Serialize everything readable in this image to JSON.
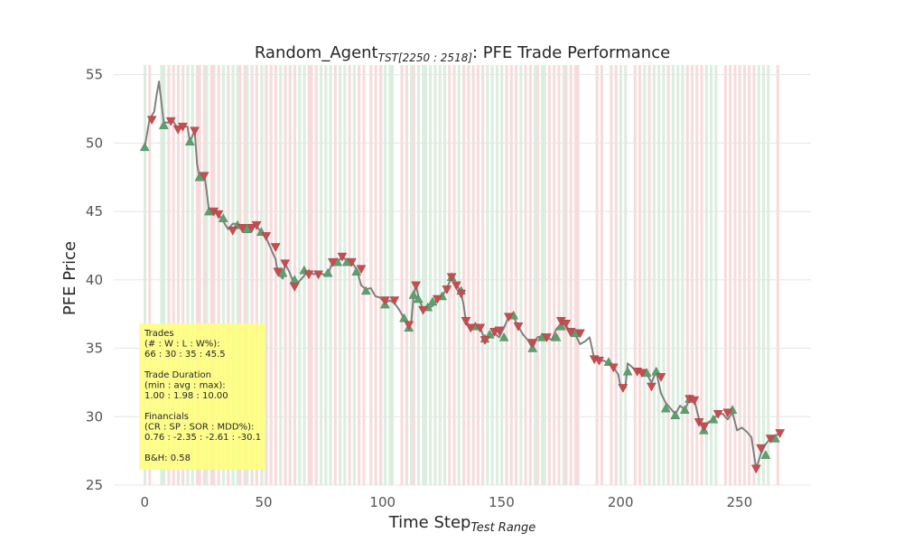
{
  "chart_data": {
    "type": "line",
    "title_main": "Random_Agent",
    "title_sub": "TST[2250 : 2518]",
    "title_rest": ": PFE Trade Performance",
    "xlabel_main": "Time Step",
    "xlabel_sub": "Test Range",
    "ylabel": "PFE Price",
    "xlim": [
      -13,
      280
    ],
    "ylim": [
      25,
      55.7
    ],
    "xticks": [
      0,
      50,
      100,
      150,
      200,
      250
    ],
    "yticks": [
      25,
      30,
      35,
      40,
      45,
      50,
      55
    ],
    "grid": true,
    "colors": {
      "line": "#808080",
      "buy": "#5f9e6e",
      "sell": "#c44e52",
      "win_band": "#d6ebd9",
      "loss_band": "#f6d6d6",
      "stats_box": "#fefe80",
      "grid": "#e5e5e5"
    },
    "price_points": [
      [
        0,
        49.7
      ],
      [
        2,
        51.7
      ],
      [
        4,
        52.3
      ],
      [
        5,
        53.5
      ],
      [
        6,
        54.5
      ],
      [
        7,
        53
      ],
      [
        8,
        51.5
      ],
      [
        10,
        51.5
      ],
      [
        12,
        51.6
      ],
      [
        14,
        51.0
      ],
      [
        16,
        51.2
      ],
      [
        18,
        51.2
      ],
      [
        19,
        50.1
      ],
      [
        21,
        50.9
      ],
      [
        22,
        48.5
      ],
      [
        23,
        47.5
      ],
      [
        25,
        47.8
      ],
      [
        26,
        46.5
      ],
      [
        27,
        45.1
      ],
      [
        29,
        45.1
      ],
      [
        31,
        44.8
      ],
      [
        33,
        44.3
      ],
      [
        35,
        43.7
      ],
      [
        37,
        44.1
      ],
      [
        39,
        44.1
      ],
      [
        41,
        43.8
      ],
      [
        43,
        43.7
      ],
      [
        45,
        43.9
      ],
      [
        47,
        44.0
      ],
      [
        49,
        43.4
      ],
      [
        51,
        43.1
      ],
      [
        53,
        42.3
      ],
      [
        55,
        41.5
      ],
      [
        56,
        40.5
      ],
      [
        58,
        40.1
      ],
      [
        59,
        41.2
      ],
      [
        61,
        40.5
      ],
      [
        63,
        39.6
      ],
      [
        65,
        39.9
      ],
      [
        67,
        40.3
      ],
      [
        69,
        40.7
      ],
      [
        71,
        40.4
      ],
      [
        73,
        40.5
      ],
      [
        75,
        40.4
      ],
      [
        77,
        40.4
      ],
      [
        79,
        41.3
      ],
      [
        81,
        41.3
      ],
      [
        83,
        41.7
      ],
      [
        85,
        41.4
      ],
      [
        87,
        41.3
      ],
      [
        89,
        40.8
      ],
      [
        91,
        39.6
      ],
      [
        93,
        39.3
      ],
      [
        95,
        39.4
      ],
      [
        97,
        38.8
      ],
      [
        99,
        38.7
      ],
      [
        101,
        38.3
      ],
      [
        103,
        38.5
      ],
      [
        105,
        38.3
      ],
      [
        107,
        37.8
      ],
      [
        109,
        37.2
      ],
      [
        111,
        36.7
      ],
      [
        112,
        36.9
      ],
      [
        113,
        38.8
      ],
      [
        114,
        39.6
      ],
      [
        115,
        38.8
      ],
      [
        117,
        37.8
      ],
      [
        119,
        37.9
      ],
      [
        121,
        38.1
      ],
      [
        123,
        38.6
      ],
      [
        125,
        38.8
      ],
      [
        127,
        39.4
      ],
      [
        129,
        40.2
      ],
      [
        131,
        39.7
      ],
      [
        133,
        39.0
      ],
      [
        134,
        38.2
      ],
      [
        135,
        37.0
      ],
      [
        137,
        36.5
      ],
      [
        139,
        36.6
      ],
      [
        141,
        36.5
      ],
      [
        143,
        35.6
      ],
      [
        145,
        35.8
      ],
      [
        147,
        36.1
      ],
      [
        149,
        35.8
      ],
      [
        151,
        36.5
      ],
      [
        153,
        37.3
      ],
      [
        155,
        37.3
      ],
      [
        157,
        36.6
      ],
      [
        159,
        36.0
      ],
      [
        161,
        35.6
      ],
      [
        163,
        35.0
      ],
      [
        165,
        35.8
      ],
      [
        167,
        35.9
      ],
      [
        169,
        35.8
      ],
      [
        171,
        35.6
      ],
      [
        173,
        36.4
      ],
      [
        175,
        36.8
      ],
      [
        177,
        36.7
      ],
      [
        179,
        36.2
      ],
      [
        181,
        36.0
      ],
      [
        183,
        35.3
      ],
      [
        185,
        35.5
      ],
      [
        187,
        35.8
      ],
      [
        189,
        34.2
      ],
      [
        191,
        34.1
      ],
      [
        193,
        34.1
      ],
      [
        195,
        33.9
      ],
      [
        197,
        33.6
      ],
      [
        199,
        33.1
      ],
      [
        200,
        32.2
      ],
      [
        202,
        32.1
      ],
      [
        203,
        33.9
      ],
      [
        205,
        33.6
      ],
      [
        207,
        33.2
      ],
      [
        209,
        33.3
      ],
      [
        211,
        33.1
      ],
      [
        213,
        32.5
      ],
      [
        215,
        33.3
      ],
      [
        217,
        31.7
      ],
      [
        219,
        31.0
      ],
      [
        221,
        30.6
      ],
      [
        223,
        30.2
      ],
      [
        225,
        30.8
      ],
      [
        227,
        30.5
      ],
      [
        229,
        31.3
      ],
      [
        231,
        31.2
      ],
      [
        233,
        29.8
      ],
      [
        235,
        29.0
      ],
      [
        237,
        29.6
      ],
      [
        239,
        29.8
      ],
      [
        241,
        30.2
      ],
      [
        243,
        30.2
      ],
      [
        245,
        29.8
      ],
      [
        247,
        30.3
      ],
      [
        249,
        29.0
      ],
      [
        251,
        29.2
      ],
      [
        253,
        28.9
      ],
      [
        255,
        28.5
      ],
      [
        257,
        26.2
      ],
      [
        259,
        27.3
      ],
      [
        261,
        28.0
      ],
      [
        263,
        28.4
      ],
      [
        265,
        28.6
      ],
      [
        267,
        28.8
      ]
    ],
    "buy_markers": [
      [
        0,
        49.7
      ],
      [
        8,
        51.3
      ],
      [
        19,
        50.1
      ],
      [
        23,
        47.5
      ],
      [
        27,
        45.0
      ],
      [
        33,
        44.5
      ],
      [
        39,
        44.0
      ],
      [
        43,
        43.7
      ],
      [
        49,
        43.5
      ],
      [
        58,
        40.5
      ],
      [
        63,
        40.0
      ],
      [
        67,
        40.7
      ],
      [
        77,
        40.5
      ],
      [
        81,
        41.3
      ],
      [
        85,
        41.3
      ],
      [
        89,
        40.6
      ],
      [
        93,
        39.2
      ],
      [
        101,
        38.2
      ],
      [
        109,
        37.2
      ],
      [
        111,
        36.5
      ],
      [
        113,
        38.9
      ],
      [
        115,
        38.6
      ],
      [
        119,
        38.0
      ],
      [
        121,
        38.4
      ],
      [
        125,
        38.8
      ],
      [
        129,
        40.2
      ],
      [
        133,
        39.2
      ],
      [
        139,
        36.6
      ],
      [
        143,
        35.7
      ],
      [
        145,
        36.0
      ],
      [
        151,
        35.8
      ],
      [
        155,
        37.4
      ],
      [
        163,
        35.0
      ],
      [
        167,
        35.8
      ],
      [
        173,
        35.8
      ],
      [
        175,
        36.6
      ],
      [
        181,
        36.1
      ],
      [
        195,
        34.0
      ],
      [
        203,
        33.3
      ],
      [
        211,
        33.2
      ],
      [
        215,
        33.3
      ],
      [
        219,
        30.6
      ],
      [
        223,
        30.1
      ],
      [
        227,
        30.5
      ],
      [
        229,
        31.3
      ],
      [
        235,
        29.0
      ],
      [
        239,
        29.8
      ],
      [
        247,
        30.5
      ],
      [
        261,
        27.2
      ],
      [
        265,
        28.4
      ]
    ],
    "sell_markers": [
      [
        3,
        51.7
      ],
      [
        11,
        51.6
      ],
      [
        14,
        51.0
      ],
      [
        16,
        51.2
      ],
      [
        21,
        50.9
      ],
      [
        25,
        47.6
      ],
      [
        29,
        45.0
      ],
      [
        31,
        44.8
      ],
      [
        37,
        43.6
      ],
      [
        41,
        43.8
      ],
      [
        45,
        43.8
      ],
      [
        47,
        44.0
      ],
      [
        51,
        43.2
      ],
      [
        55,
        42.4
      ],
      [
        56,
        40.6
      ],
      [
        59,
        41.2
      ],
      [
        63,
        39.5
      ],
      [
        69,
        40.4
      ],
      [
        73,
        40.4
      ],
      [
        79,
        41.3
      ],
      [
        83,
        41.7
      ],
      [
        87,
        41.3
      ],
      [
        91,
        40.8
      ],
      [
        101,
        38.5
      ],
      [
        105,
        38.5
      ],
      [
        111,
        36.7
      ],
      [
        114,
        39.6
      ],
      [
        117,
        37.8
      ],
      [
        123,
        38.6
      ],
      [
        127,
        39.3
      ],
      [
        129,
        40.2
      ],
      [
        131,
        39.6
      ],
      [
        133,
        39.0
      ],
      [
        135,
        37.0
      ],
      [
        137,
        36.5
      ],
      [
        141,
        36.5
      ],
      [
        143,
        35.6
      ],
      [
        147,
        36.2
      ],
      [
        149,
        36.3
      ],
      [
        153,
        37.3
      ],
      [
        157,
        36.6
      ],
      [
        163,
        35.4
      ],
      [
        169,
        35.8
      ],
      [
        175,
        37.0
      ],
      [
        177,
        36.8
      ],
      [
        179,
        36.2
      ],
      [
        183,
        36.1
      ],
      [
        189,
        34.2
      ],
      [
        191,
        34.1
      ],
      [
        197,
        33.6
      ],
      [
        201,
        32.1
      ],
      [
        207,
        33.3
      ],
      [
        209,
        33.2
      ],
      [
        213,
        32.2
      ],
      [
        217,
        32.9
      ],
      [
        229,
        31.3
      ],
      [
        231,
        31.2
      ],
      [
        233,
        29.6
      ],
      [
        235,
        29.3
      ],
      [
        241,
        30.2
      ],
      [
        245,
        30.3
      ],
      [
        257,
        26.2
      ],
      [
        259,
        27.7
      ],
      [
        263,
        28.4
      ],
      [
        267,
        28.8
      ]
    ],
    "bands": [
      [
        0,
        "g"
      ],
      [
        2,
        "r"
      ],
      [
        7,
        "g"
      ],
      [
        8,
        "g"
      ],
      [
        10,
        "r"
      ],
      [
        12,
        "r"
      ],
      [
        14,
        "r"
      ],
      [
        16,
        "r"
      ],
      [
        18,
        "g"
      ],
      [
        20,
        "g"
      ],
      [
        22,
        "r"
      ],
      [
        23,
        "r"
      ],
      [
        25,
        "r"
      ],
      [
        26,
        "g"
      ],
      [
        28,
        "r"
      ],
      [
        29,
        "r"
      ],
      [
        31,
        "r"
      ],
      [
        33,
        "g"
      ],
      [
        35,
        "r"
      ],
      [
        37,
        "g"
      ],
      [
        39,
        "g"
      ],
      [
        40,
        "r"
      ],
      [
        42,
        "r"
      ],
      [
        43,
        "g"
      ],
      [
        45,
        "r"
      ],
      [
        47,
        "r"
      ],
      [
        49,
        "g"
      ],
      [
        51,
        "r"
      ],
      [
        53,
        "r"
      ],
      [
        55,
        "r"
      ],
      [
        57,
        "g"
      ],
      [
        59,
        "r"
      ],
      [
        61,
        "r"
      ],
      [
        63,
        "r"
      ],
      [
        65,
        "g"
      ],
      [
        67,
        "g"
      ],
      [
        69,
        "r"
      ],
      [
        70,
        "r"
      ],
      [
        72,
        "r"
      ],
      [
        74,
        "g"
      ],
      [
        76,
        "g"
      ],
      [
        78,
        "g"
      ],
      [
        80,
        "r"
      ],
      [
        82,
        "g"
      ],
      [
        84,
        "g"
      ],
      [
        86,
        "r"
      ],
      [
        88,
        "g"
      ],
      [
        90,
        "r"
      ],
      [
        92,
        "r"
      ],
      [
        95,
        "r"
      ],
      [
        97,
        "r"
      ],
      [
        99,
        "r"
      ],
      [
        101,
        "g"
      ],
      [
        103,
        "g"
      ],
      [
        104,
        "g"
      ],
      [
        108,
        "r"
      ],
      [
        110,
        "r"
      ],
      [
        112,
        "g"
      ],
      [
        113,
        "r"
      ],
      [
        115,
        "g"
      ],
      [
        117,
        "g"
      ],
      [
        118,
        "g"
      ],
      [
        120,
        "g"
      ],
      [
        122,
        "g"
      ],
      [
        124,
        "g"
      ],
      [
        126,
        "g"
      ],
      [
        128,
        "r"
      ],
      [
        130,
        "r"
      ],
      [
        132,
        "g"
      ],
      [
        134,
        "r"
      ],
      [
        136,
        "r"
      ],
      [
        138,
        "r"
      ],
      [
        140,
        "r"
      ],
      [
        142,
        "r"
      ],
      [
        144,
        "g"
      ],
      [
        146,
        "g"
      ],
      [
        148,
        "g"
      ],
      [
        150,
        "g"
      ],
      [
        152,
        "r"
      ],
      [
        154,
        "r"
      ],
      [
        156,
        "r"
      ],
      [
        158,
        "g"
      ],
      [
        160,
        "r"
      ],
      [
        162,
        "r"
      ],
      [
        164,
        "g"
      ],
      [
        165,
        "r"
      ],
      [
        167,
        "g"
      ],
      [
        168,
        "g"
      ],
      [
        170,
        "r"
      ],
      [
        172,
        "r"
      ],
      [
        174,
        "r"
      ],
      [
        176,
        "g"
      ],
      [
        177,
        "r"
      ],
      [
        179,
        "r"
      ],
      [
        181,
        "r"
      ],
      [
        182,
        "r"
      ],
      [
        190,
        "r"
      ],
      [
        192,
        "r"
      ],
      [
        196,
        "r"
      ],
      [
        198,
        "r"
      ],
      [
        200,
        "g"
      ],
      [
        202,
        "g"
      ],
      [
        206,
        "r"
      ],
      [
        208,
        "r"
      ],
      [
        210,
        "g"
      ],
      [
        212,
        "r"
      ],
      [
        214,
        "g"
      ],
      [
        216,
        "g"
      ],
      [
        218,
        "g"
      ],
      [
        220,
        "r"
      ],
      [
        222,
        "g"
      ],
      [
        224,
        "g"
      ],
      [
        226,
        "g"
      ],
      [
        228,
        "r"
      ],
      [
        230,
        "r"
      ],
      [
        232,
        "r"
      ],
      [
        234,
        "r"
      ],
      [
        236,
        "g"
      ],
      [
        238,
        "g"
      ],
      [
        240,
        "g"
      ],
      [
        244,
        "r"
      ],
      [
        246,
        "r"
      ],
      [
        248,
        "r"
      ],
      [
        250,
        "r"
      ],
      [
        252,
        "r"
      ],
      [
        254,
        "r"
      ],
      [
        256,
        "r"
      ],
      [
        258,
        "g"
      ],
      [
        260,
        "g"
      ],
      [
        262,
        "g"
      ],
      [
        266,
        "r"
      ]
    ],
    "stats_lines": [
      "Trades",
      "(# : W : L : W%):",
      "66 : 30 : 35 : 45.5",
      "",
      "Trade Duration",
      "(min : avg : max):",
      "1.00 : 1.98 : 10.00",
      "",
      "Financials",
      "(CR : SP : SOR : MDD%):",
      "0.76 : -2.35 : -2.61 : -30.1",
      "",
      "B&H: 0.58"
    ]
  }
}
